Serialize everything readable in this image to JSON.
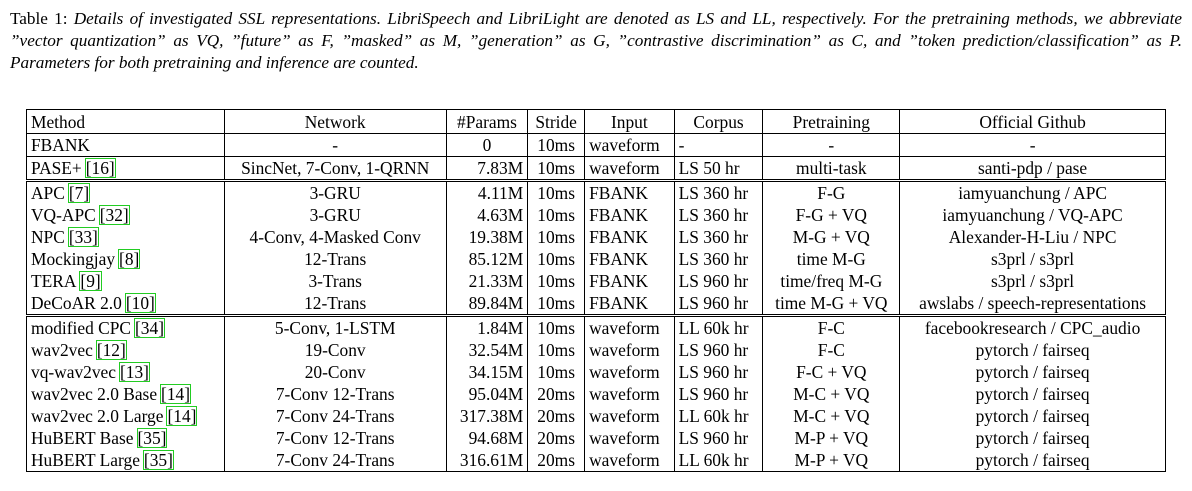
{
  "caption": {
    "label": "Table 1: ",
    "text": "Details of investigated SSL representations. LibriSpeech and LibriLight are denoted as LS and LL, respectively. For the pretraining methods, we abbreviate ”vector quantization” as VQ, ”future” as F, ”masked” as M, ”generation” as G, ”contrastive discrimination” as C, and ”token prediction/classification” as P. Parameters for both pretraining and inference are counted."
  },
  "table": {
    "headers": [
      "Method",
      "Network",
      "#Params",
      "Stride",
      "Input",
      "Corpus",
      "Pretraining",
      "Official Github"
    ],
    "rows": [
      {
        "method": "FBANK",
        "cite": "",
        "network": "-",
        "params": "0",
        "stride": "10ms",
        "input": "waveform",
        "corpus": "-",
        "pretraining": "-",
        "github": "-"
      },
      {
        "method": "PASE+",
        "cite": "[16]",
        "network": "SincNet, 7-Conv, 1-QRNN",
        "params": "7.83M",
        "stride": "10ms",
        "input": "waveform",
        "corpus": "LS 50 hr",
        "pretraining": "multi-task",
        "github": "santi-pdp / pase"
      },
      {
        "method": "APC",
        "cite": "[7]",
        "network": "3-GRU",
        "params": "4.11M",
        "stride": "10ms",
        "input": "FBANK",
        "corpus": "LS 360 hr",
        "pretraining": "F-G",
        "github": "iamyuanchung / APC"
      },
      {
        "method": "VQ-APC",
        "cite": "[32]",
        "network": "3-GRU",
        "params": "4.63M",
        "stride": "10ms",
        "input": "FBANK",
        "corpus": "LS 360 hr",
        "pretraining": "F-G + VQ",
        "github": "iamyuanchung / VQ-APC"
      },
      {
        "method": "NPC",
        "cite": "[33]",
        "network": "4-Conv, 4-Masked Conv",
        "params": "19.38M",
        "stride": "10ms",
        "input": "FBANK",
        "corpus": "LS 360 hr",
        "pretraining": "M-G + VQ",
        "github": "Alexander-H-Liu / NPC"
      },
      {
        "method": "Mockingjay",
        "cite": "[8]",
        "network": "12-Trans",
        "params": "85.12M",
        "stride": "10ms",
        "input": "FBANK",
        "corpus": "LS 360 hr",
        "pretraining": "time M-G",
        "github": "s3prl / s3prl"
      },
      {
        "method": "TERA",
        "cite": "[9]",
        "network": "3-Trans",
        "params": "21.33M",
        "stride": "10ms",
        "input": "FBANK",
        "corpus": "LS 960 hr",
        "pretraining": "time/freq M-G",
        "github": "s3prl / s3prl"
      },
      {
        "method": "DeCoAR 2.0",
        "cite": "[10]",
        "network": "12-Trans",
        "params": "89.84M",
        "stride": "10ms",
        "input": "FBANK",
        "corpus": "LS 960 hr",
        "pretraining": "time M-G + VQ",
        "github": "awslabs / speech-representations"
      },
      {
        "method": "modified CPC",
        "cite": "[34]",
        "network": "5-Conv, 1-LSTM",
        "params": "1.84M",
        "stride": "10ms",
        "input": "waveform",
        "corpus": "LL 60k hr",
        "pretraining": "F-C",
        "github": "facebookresearch / CPC_audio"
      },
      {
        "method": "wav2vec",
        "cite": "[12]",
        "network": "19-Conv",
        "params": "32.54M",
        "stride": "10ms",
        "input": "waveform",
        "corpus": "LS 960 hr",
        "pretraining": "F-C",
        "github": "pytorch / fairseq"
      },
      {
        "method": "vq-wav2vec",
        "cite": "[13]",
        "network": "20-Conv",
        "params": "34.15M",
        "stride": "10ms",
        "input": "waveform",
        "corpus": "LS 960 hr",
        "pretraining": "F-C + VQ",
        "github": "pytorch / fairseq"
      },
      {
        "method": "wav2vec 2.0 Base",
        "cite": "[14]",
        "network": "7-Conv 12-Trans",
        "params": "95.04M",
        "stride": "20ms",
        "input": "waveform",
        "corpus": "LS 960 hr",
        "pretraining": "M-C + VQ",
        "github": "pytorch / fairseq"
      },
      {
        "method": "wav2vec 2.0 Large",
        "cite": "[14]",
        "network": "7-Conv 24-Trans",
        "params": "317.38M",
        "stride": "20ms",
        "input": "waveform",
        "corpus": "LL 60k hr",
        "pretraining": "M-C + VQ",
        "github": "pytorch / fairseq"
      },
      {
        "method": "HuBERT Base",
        "cite": "[35]",
        "network": "7-Conv 12-Trans",
        "params": "94.68M",
        "stride": "20ms",
        "input": "waveform",
        "corpus": "LS 960 hr",
        "pretraining": "M-P + VQ",
        "github": "pytorch / fairseq"
      },
      {
        "method": "HuBERT Large",
        "cite": "[35]",
        "network": "7-Conv 24-Trans",
        "params": "316.61M",
        "stride": "20ms",
        "input": "waveform",
        "corpus": "LL 60k hr",
        "pretraining": "M-P + VQ",
        "github": "pytorch / fairseq"
      }
    ]
  }
}
